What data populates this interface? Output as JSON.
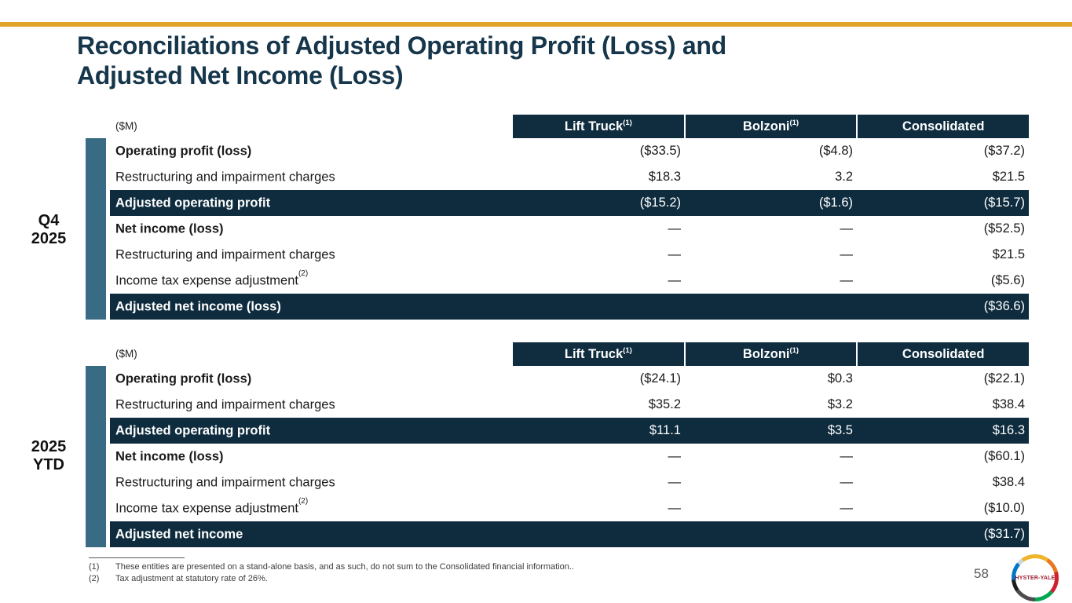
{
  "slide": {
    "title_line1": "Reconciliations of Adjusted Operating Profit (Loss) and",
    "title_line2": "Adjusted Net Income (Loss)",
    "page_number": "58"
  },
  "colors": {
    "accent_gold": "#DFA428",
    "header_navy": "#0F2D3F",
    "highlight_navy": "#0E2C3E",
    "sidebar_teal": "#3A6B85",
    "title_navy": "#16364B"
  },
  "tables": [
    {
      "period_line1": "Q4",
      "period_line2": "2025",
      "unit_label": "($M)",
      "columns": [
        {
          "label": "Lift Truck",
          "sup": "(1)"
        },
        {
          "label": "Bolzoni",
          "sup": "(1)"
        },
        {
          "label": "Consolidated",
          "sup": ""
        }
      ],
      "rows": [
        {
          "label": "Operating profit (loss)",
          "sup": "",
          "values": [
            "($33.5)",
            "($4.8)",
            "($37.2)"
          ]
        },
        {
          "label": "Restructuring and impairment charges",
          "sup": "",
          "values": [
            "$18.3",
            "3.2",
            "$21.5"
          ]
        },
        {
          "label": "Adjusted operating profit",
          "sup": "",
          "values": [
            "($15.2)",
            "($1.6)",
            "($15.7)"
          ]
        },
        {
          "label": "Net income (loss)",
          "sup": "",
          "values": [
            "—",
            "—",
            "($52.5)"
          ]
        },
        {
          "label": "Restructuring and impairment charges",
          "sup": "",
          "values": [
            "—",
            "—",
            "$21.5"
          ]
        },
        {
          "label": "Income tax expense adjustment",
          "sup": "(2)",
          "values": [
            "—",
            "—",
            "($5.6)"
          ]
        },
        {
          "label": "Adjusted net income (loss)",
          "sup": "",
          "values": [
            "",
            "",
            "($36.6)"
          ]
        }
      ]
    },
    {
      "period_line1": "2025",
      "period_line2": "YTD",
      "unit_label": "($M)",
      "columns": [
        {
          "label": "Lift Truck",
          "sup": "(1)"
        },
        {
          "label": "Bolzoni",
          "sup": "(1)"
        },
        {
          "label": "Consolidated",
          "sup": ""
        }
      ],
      "rows": [
        {
          "label": "Operating profit (loss)",
          "sup": "",
          "values": [
            "($24.1)",
            "$0.3",
            "($22.1)"
          ]
        },
        {
          "label": "Restructuring and impairment charges",
          "sup": "",
          "values": [
            "$35.2",
            "$3.2",
            "$38.4"
          ]
        },
        {
          "label": "Adjusted operating profit",
          "sup": "",
          "values": [
            "$11.1",
            "$3.5",
            "$16.3"
          ]
        },
        {
          "label": "Net income (loss)",
          "sup": "",
          "values": [
            "—",
            "—",
            "($60.1)"
          ]
        },
        {
          "label": "Restructuring and impairment charges",
          "sup": "",
          "values": [
            "—",
            "—",
            "$38.4"
          ]
        },
        {
          "label": "Income tax expense adjustment",
          "sup": "(2)",
          "values": [
            "—",
            "—",
            "($10.0)"
          ]
        },
        {
          "label": "Adjusted net income",
          "sup": "",
          "values": [
            "",
            "",
            "($31.7)"
          ]
        }
      ]
    }
  ],
  "footnotes": {
    "items": [
      {
        "marker": "(1)",
        "text": "These entities are presented on a stand-alone basis, and as such, do not sum to the Consolidated financial information.."
      },
      {
        "marker": "(2)",
        "text": "Tax adjustment at statutory rate of 26%."
      }
    ]
  },
  "logo": {
    "text": "HYSTER-YALE"
  }
}
